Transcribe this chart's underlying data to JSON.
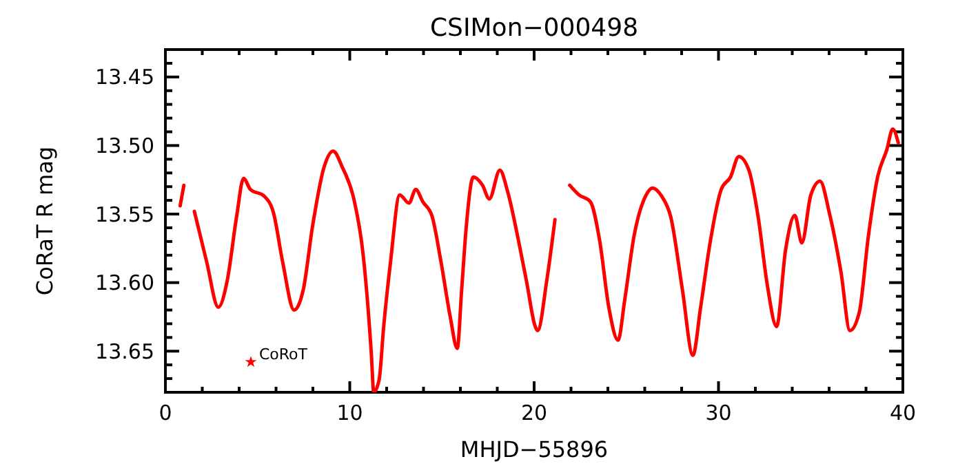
{
  "chart_data": {
    "type": "line",
    "title": "CSIMon−000498",
    "xlabel": "MHJD−55896",
    "ylabel": "CoRaT R mag",
    "xlim": [
      0,
      40
    ],
    "ylim": [
      13.68,
      13.43
    ],
    "xticks": [
      0,
      {
        "value": 2,
        "label": null
      },
      {
        "value": 4,
        "label": null
      },
      {
        "value": 6,
        "label": null
      },
      {
        "value": 8,
        "label": null
      },
      10,
      {
        "value": 12,
        "label": null
      },
      {
        "value": 14,
        "label": null
      },
      {
        "value": 16,
        "label": null
      },
      {
        "value": 18,
        "label": null
      },
      20,
      {
        "value": 22,
        "label": null
      },
      {
        "value": 24,
        "label": null
      },
      {
        "value": 26,
        "label": null
      },
      {
        "value": 28,
        "label": null
      },
      30,
      {
        "value": 32,
        "label": null
      },
      {
        "value": 34,
        "label": null
      },
      {
        "value": 36,
        "label": null
      },
      {
        "value": 38,
        "label": null
      },
      40
    ],
    "yticks": [
      {
        "value": 13.44,
        "label": null
      },
      {
        "value": 13.45,
        "label": "13.45"
      },
      {
        "value": 13.46,
        "label": null
      },
      {
        "value": 13.47,
        "label": null
      },
      {
        "value": 13.48,
        "label": null
      },
      {
        "value": 13.49,
        "label": null
      },
      {
        "value": 13.5,
        "label": "13.50"
      },
      {
        "value": 13.51,
        "label": null
      },
      {
        "value": 13.52,
        "label": null
      },
      {
        "value": 13.53,
        "label": null
      },
      {
        "value": 13.54,
        "label": null
      },
      {
        "value": 13.55,
        "label": "13.55"
      },
      {
        "value": 13.56,
        "label": null
      },
      {
        "value": 13.57,
        "label": null
      },
      {
        "value": 13.58,
        "label": null
      },
      {
        "value": 13.59,
        "label": null
      },
      {
        "value": 13.6,
        "label": "13.60"
      },
      {
        "value": 13.61,
        "label": null
      },
      {
        "value": 13.62,
        "label": null
      },
      {
        "value": 13.63,
        "label": null
      },
      {
        "value": 13.64,
        "label": null
      },
      {
        "value": 13.65,
        "label": "13.65"
      },
      {
        "value": 13.66,
        "label": null
      },
      {
        "value": 13.67,
        "label": null
      }
    ],
    "grid": false,
    "legend": "bottom left",
    "marker": "none",
    "line_style": "solid",
    "series": [
      {
        "name": "CoRoT",
        "color": "#ff0000",
        "x": [
          0.8,
          1.0,
          1.3,
          1.57,
          2.24,
          2.87,
          3.36,
          3.86,
          4.24,
          4.61,
          5.36,
          5.86,
          6.36,
          6.98,
          7.48,
          7.98,
          8.6,
          9.1,
          9.6,
          10.22,
          10.72,
          11.17,
          11.3,
          11.59,
          11.84,
          12.21,
          12.71,
          13.21,
          13.58,
          13.96,
          14.45,
          14.95,
          15.45,
          15.83,
          16.07,
          16.32,
          16.7,
          17.2,
          17.57,
          18.14,
          18.57,
          19.19,
          19.6,
          20.06,
          20.19,
          20.69,
          21.13,
          21.5,
          21.93,
          22.43,
          23.05,
          23.55,
          24.05,
          24.55,
          24.92,
          25.42,
          26.04,
          26.42,
          26.92,
          27.41,
          28.04,
          28.61,
          29.03,
          29.53,
          30.15,
          30.65,
          31.1,
          31.65,
          32.15,
          32.65,
          33.15,
          33.64,
          34.14,
          34.52,
          35.01,
          35.51,
          36.01,
          36.64,
          37.13,
          37.63,
          38.13,
          38.63,
          39.13,
          39.45,
          39.75
        ],
        "values": [
          13.544,
          13.529,
          null,
          13.548,
          13.585,
          13.618,
          13.598,
          13.552,
          13.524,
          13.532,
          13.537,
          13.549,
          13.585,
          13.62,
          13.605,
          13.559,
          13.516,
          13.504,
          13.516,
          13.539,
          13.579,
          13.652,
          13.68,
          13.671,
          13.632,
          13.585,
          13.536,
          13.542,
          13.532,
          13.541,
          13.551,
          13.585,
          13.625,
          13.648,
          13.605,
          13.559,
          13.523,
          13.529,
          13.539,
          13.518,
          13.534,
          13.572,
          13.6,
          13.632,
          13.635,
          13.598,
          13.554,
          null,
          13.529,
          13.536,
          13.541,
          13.569,
          13.618,
          13.642,
          13.612,
          13.566,
          13.537,
          13.531,
          13.537,
          13.552,
          13.605,
          13.653,
          13.618,
          13.572,
          13.532,
          13.523,
          13.508,
          13.518,
          13.552,
          13.602,
          13.632,
          13.576,
          13.551,
          13.571,
          13.536,
          13.526,
          13.549,
          13.592,
          13.635,
          13.622,
          13.566,
          13.523,
          13.503,
          13.488,
          13.498
        ]
      }
    ]
  }
}
